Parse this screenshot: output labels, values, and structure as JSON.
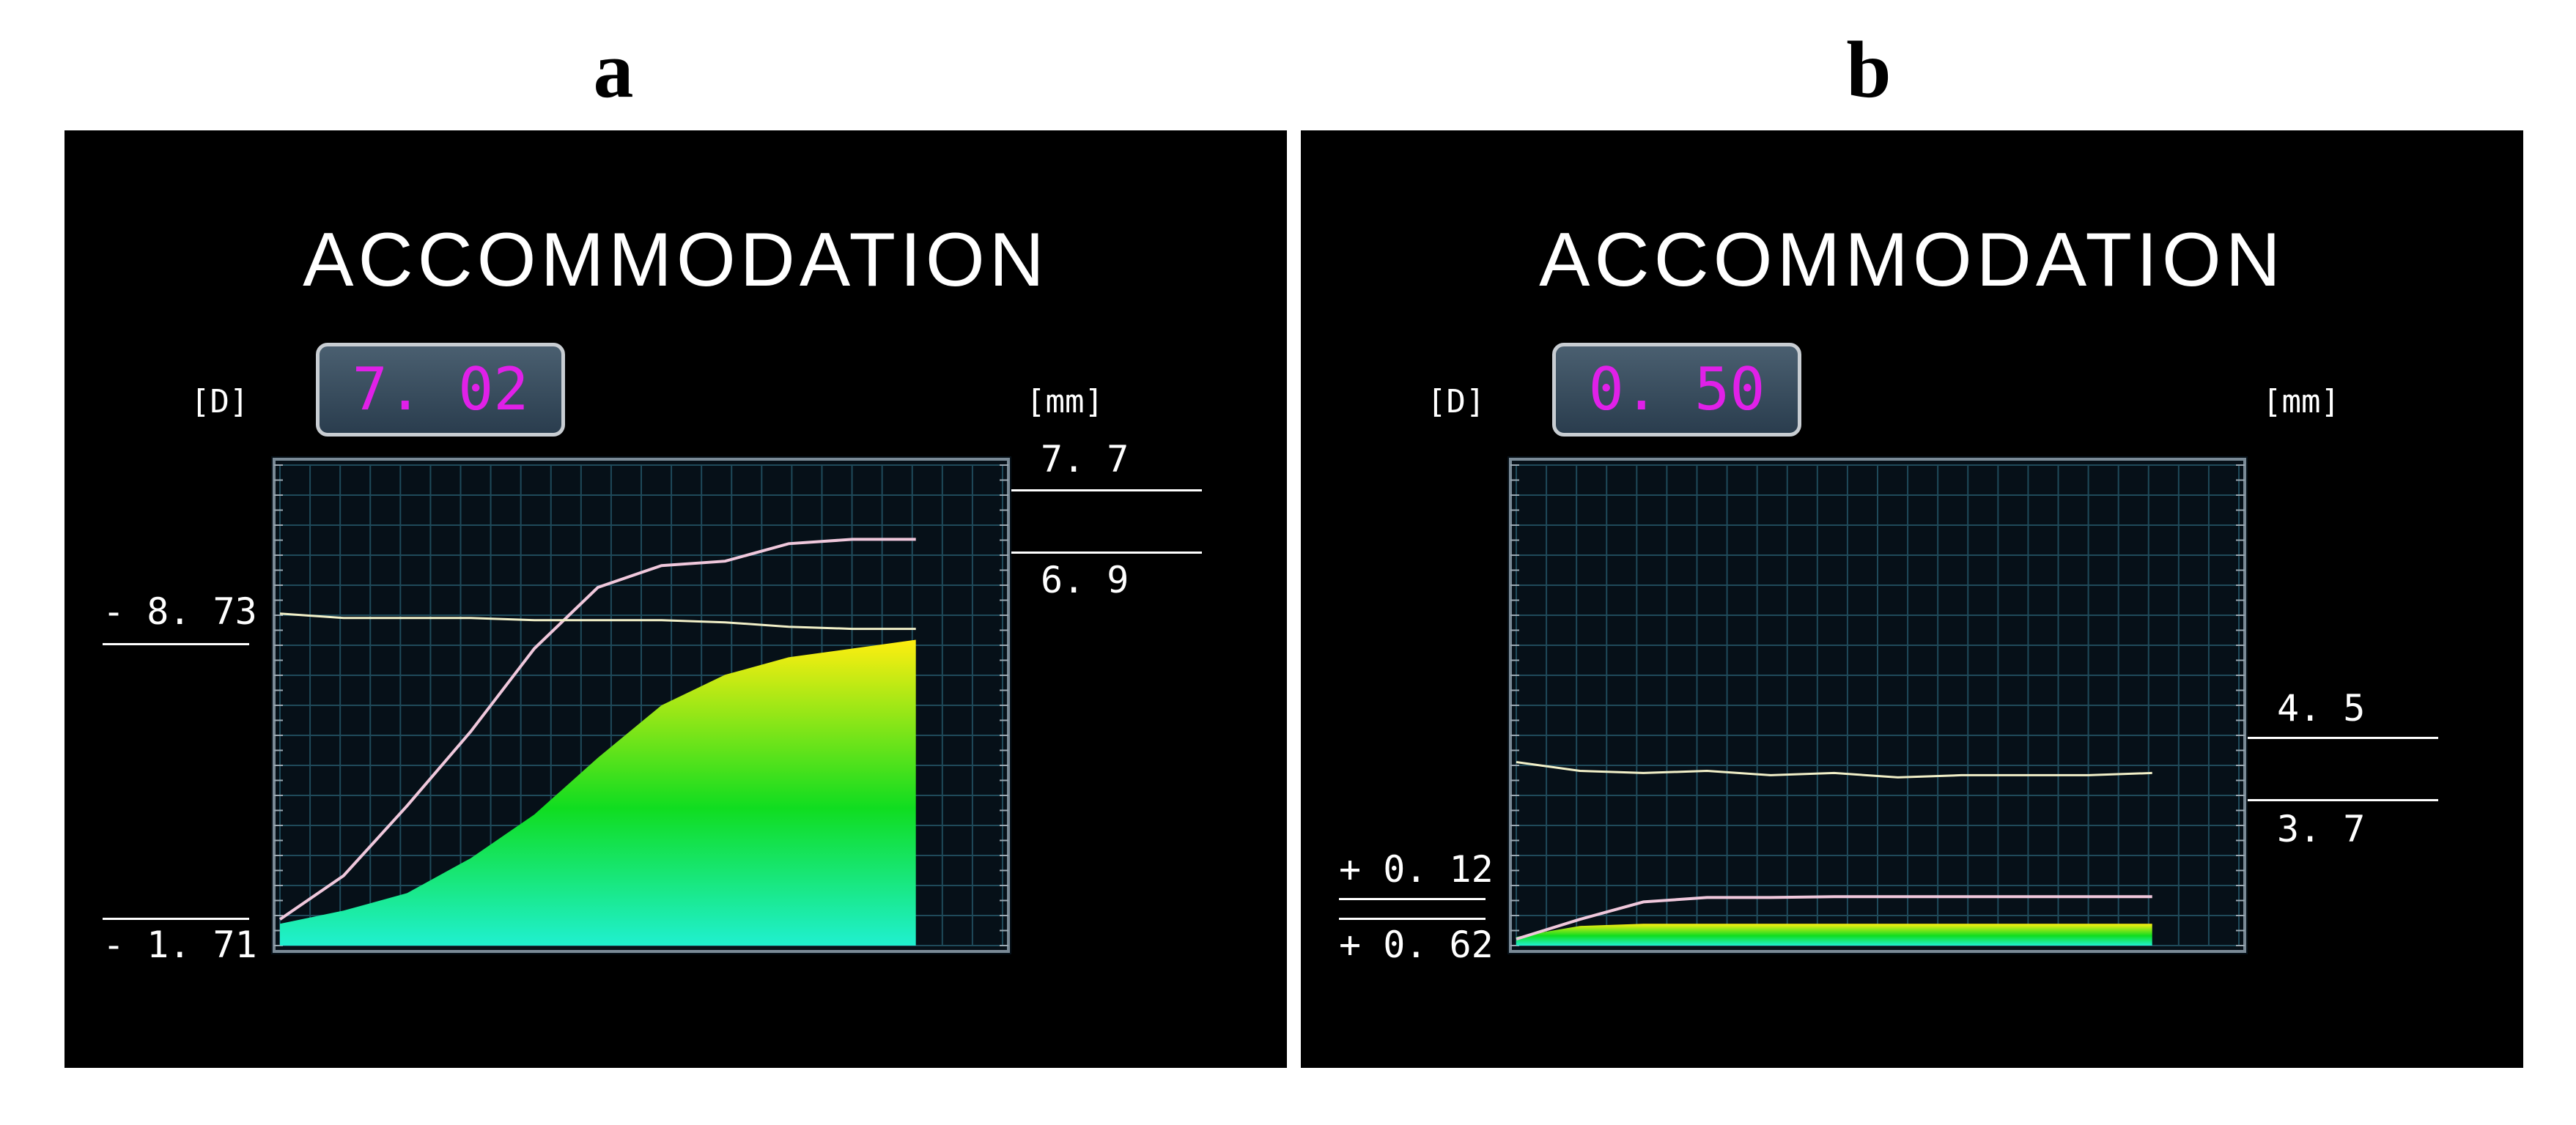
{
  "panels": [
    {
      "label": "a",
      "title": "ACCOMMODATION",
      "value": "7. 02",
      "left_unit": "[D]",
      "right_unit": "[mm]",
      "left_labels": [
        "- 8. 73",
        "- 1. 71"
      ],
      "right_labels": [
        "7. 7",
        "6. 9"
      ]
    },
    {
      "label": "b",
      "title": "ACCOMMODATION",
      "value": "0. 50",
      "left_unit": "[D]",
      "right_unit": "[mm]",
      "left_labels": [
        "+ 0. 12",
        "+ 0. 62"
      ],
      "right_labels": [
        "4. 5",
        "3. 7"
      ]
    }
  ],
  "colors": {
    "value_text": "#e020e8",
    "grid": "#1f4a5a",
    "pupil_trace": "#f2f0c8",
    "stimulus_trace": "#f0c8dc",
    "fill_top": "#ffee10",
    "fill_mid": "#10dd20",
    "fill_bottom": "#20f0d0"
  },
  "chart_data": [
    {
      "type": "area",
      "panel": "a",
      "series": [
        {
          "values": [
            0.5,
            0.8,
            1.2,
            2.0,
            3.0,
            4.3,
            5.5,
            6.2,
            6.6,
            6.8,
            7.0
          ]
        },
        {
          "values": [
            0.6,
            1.6,
            3.2,
            4.9,
            6.8,
            8.2,
            8.7,
            8.8,
            9.2,
            9.3,
            9.3
          ]
        },
        {
          "values": [
            7.6,
            7.5,
            7.5,
            7.5,
            7.45,
            7.45,
            7.45,
            7.4,
            7.3,
            7.25,
            7.25
          ]
        }
      ]
    },
    {
      "type": "area",
      "panel": "b",
      "series": [
        {
          "values": [
            0.2,
            0.45,
            0.5,
            0.5,
            0.5,
            0.5,
            0.5,
            0.5,
            0.5,
            0.5,
            0.5
          ]
        },
        {
          "values": [
            0.15,
            0.6,
            1.0,
            1.1,
            1.1,
            1.12,
            1.12,
            1.12,
            1.12,
            1.12,
            1.12
          ]
        },
        {
          "values": [
            4.2,
            4.0,
            3.95,
            4.0,
            3.9,
            3.95,
            3.85,
            3.9,
            3.9,
            3.9,
            3.95
          ]
        }
      ]
    }
  ]
}
